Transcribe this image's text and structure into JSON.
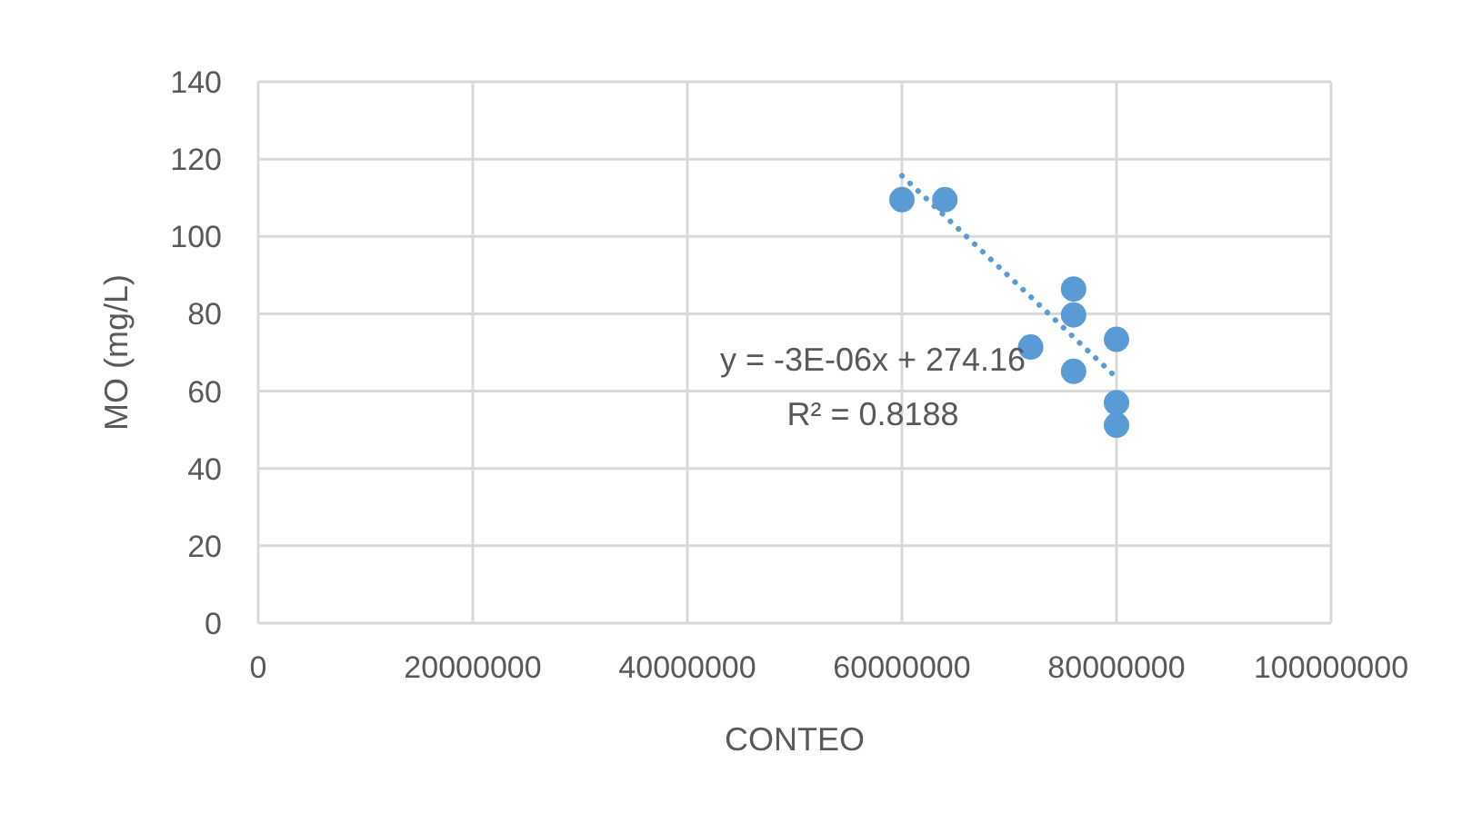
{
  "chart_data": {
    "type": "scatter",
    "xlabel": "CONTEO",
    "ylabel": "MO (mg/L)",
    "xlim": [
      0,
      100000000
    ],
    "xticks": [
      0,
      20000000,
      40000000,
      60000000,
      80000000,
      100000000
    ],
    "ylim": [
      0,
      140
    ],
    "yticks": [
      0,
      20,
      40,
      60,
      80,
      100,
      120,
      140
    ],
    "grid": true,
    "series": [
      {
        "color": "#5b9bd5",
        "marker": "circle",
        "x": [
          60000000,
          64000000,
          76000000,
          76000000,
          72000000,
          76000000,
          80000000,
          80000000,
          80000000
        ],
        "values": [
          109.5,
          109.5,
          86.4,
          79.7,
          71.4,
          65.1,
          73.4,
          57,
          51.2
        ]
      },
      {
        "type": "line",
        "color": "#5b9bd5",
        "line_style": "dotted",
        "marker": "none",
        "x": [
          60000000,
          80000000
        ],
        "values": [
          115.7,
          63.5
        ]
      }
    ],
    "annotations": [
      "y = -3E-06x + 274.16",
      "R² = 0.8188"
    ]
  }
}
